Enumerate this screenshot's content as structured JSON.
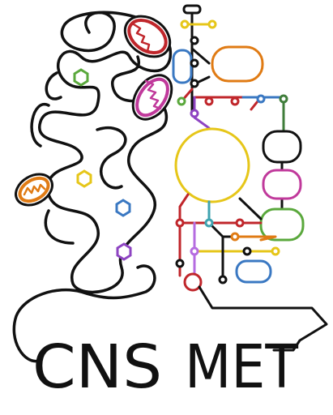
{
  "logo": {
    "words": [
      "CNS",
      "MET"
    ]
  }
}
